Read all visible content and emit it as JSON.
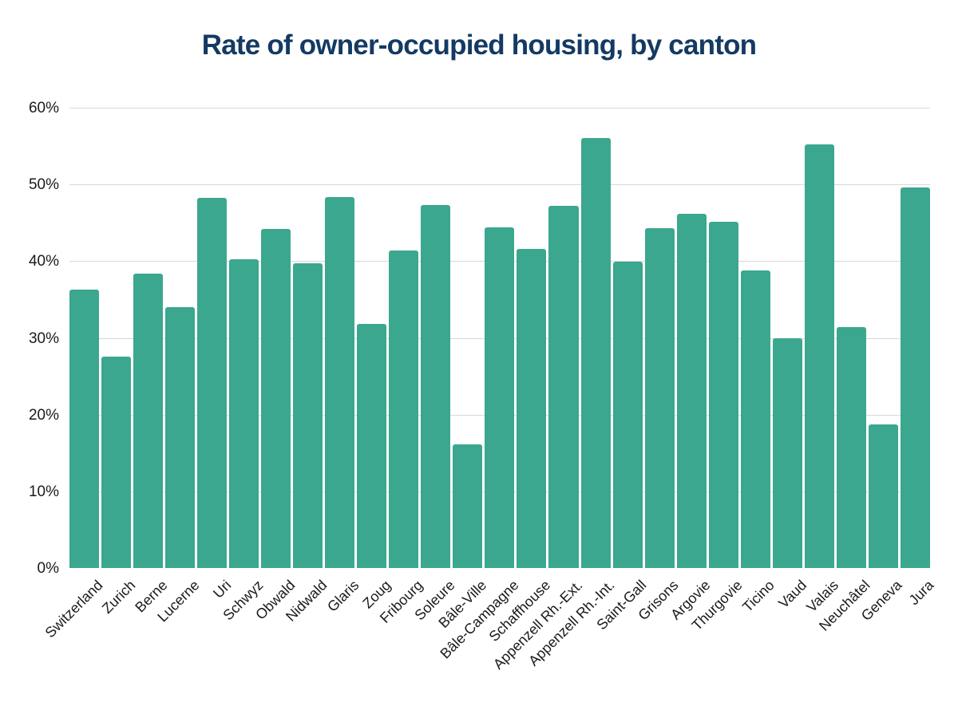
{
  "title": "Rate of owner-occupied housing, by canton",
  "colors": {
    "bar": "#3BA78F",
    "title_text": "#143A63",
    "gridline": "#D8D8D8",
    "tick_text": "#1A1A1A",
    "background": "#FFFFFF"
  },
  "y_axis": {
    "tick_labels": [
      "60%",
      "50%",
      "40%",
      "30%",
      "20%",
      "10%",
      "0%"
    ]
  },
  "chart_data": {
    "type": "bar",
    "title": "Rate of owner-occupied housing, by canton",
    "categories": [
      "Switzerland",
      "Zurich",
      "Berne",
      "Lucerne",
      "Uri",
      "Schwyz",
      "Obwald",
      "Nidwald",
      "Glaris",
      "Zoug",
      "Fribourg",
      "Soleure",
      "Bâle-Ville",
      "Bâle-Campagne",
      "Schaffhouse",
      "Appenzell Rh.-Ext.",
      "Appenzell Rh.-Int.",
      "Saint-Gall",
      "Grisons",
      "Argovie",
      "Thurgovie",
      "Ticino",
      "Vaud",
      "Valais",
      "Neuchâtel",
      "Geneva",
      "Jura"
    ],
    "values": [
      36.3,
      27.6,
      38.4,
      34.0,
      48.2,
      40.2,
      44.2,
      39.7,
      48.4,
      31.8,
      41.4,
      47.3,
      16.1,
      44.4,
      41.6,
      47.2,
      56.0,
      39.9,
      44.3,
      46.2,
      45.1,
      38.8,
      29.9,
      55.2,
      31.4,
      18.7,
      49.6
    ],
    "xlabel": "",
    "ylabel": "",
    "ylim": [
      0,
      60
    ],
    "ytick_step": 10,
    "ytick_format": "percent",
    "grid": true,
    "legend": false,
    "bar_color": "#3BA78F",
    "x_tick_rotation_deg": 45
  }
}
